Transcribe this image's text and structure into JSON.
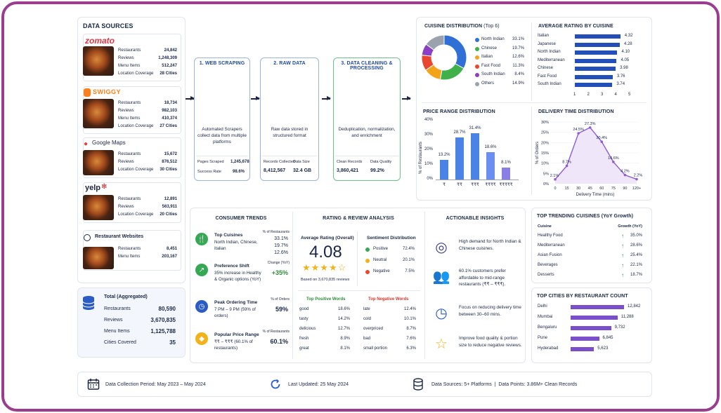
{
  "sources": {
    "title": "DATA SOURCES",
    "items": [
      {
        "logo": "zomato",
        "rows": [
          [
            "Restaurants",
            "24,842"
          ],
          [
            "Reviews",
            "1,248,309"
          ],
          [
            "Menu Items",
            "512,247"
          ],
          [
            "Location Coverage",
            "28 Cities"
          ]
        ]
      },
      {
        "logo": "SWIGGY",
        "rows": [
          [
            "Restaurants",
            "18,734"
          ],
          [
            "Reviews",
            "982,103"
          ],
          [
            "Menu Items",
            "410,374"
          ],
          [
            "Location Coverage",
            "27 Cities"
          ]
        ]
      },
      {
        "logo": "Google Maps",
        "rows": [
          [
            "Restaurants",
            "15,672"
          ],
          [
            "Reviews",
            "876,512"
          ],
          [
            "Location Coverage",
            "30 Cities"
          ]
        ]
      },
      {
        "logo": "yelp",
        "rows": [
          [
            "Restaurants",
            "12,891"
          ],
          [
            "Reviews",
            "563,911"
          ],
          [
            "Location Coverage",
            "20 Cities"
          ]
        ]
      },
      {
        "logo": "Restaurant Websites",
        "rows": [
          [
            "Restaurants",
            "8,451"
          ],
          [
            "Menu Items",
            "203,167"
          ]
        ]
      }
    ],
    "total": {
      "title": "Total (Aggregated)",
      "rows": [
        [
          "Restaurants",
          "80,590"
        ],
        [
          "Reviews",
          "3,670,835"
        ],
        [
          "Menu Items",
          "1,125,788"
        ],
        [
          "Cities Covered",
          "35"
        ]
      ]
    }
  },
  "pipeline": [
    {
      "title": "1. WEB SCRAPING",
      "desc": "Automated Scrapers collect data from multiple platforms",
      "s1l": "Pages Scraped",
      "s1v": "1,245,678",
      "s2l": "Success Rate",
      "s2v": "98.6%"
    },
    {
      "title": "2. RAW DATA",
      "desc": "Raw data stored in structured format",
      "s1l": "Records Collected",
      "s1v": "8,412,567",
      "s2l": "Data Size",
      "s2v": "32.4 GB"
    },
    {
      "title": "3. DATA CLEANING & PROCESSING",
      "desc": "Deduplication, normalization, and enrichment",
      "s1l": "Clean Records",
      "s1v": "3,860,421",
      "s2l": "Data Quality",
      "s2v": "99.2%"
    }
  ],
  "cuisine": {
    "title": "CUISINE DISTRIBUTION",
    "sub": "(Top 6)",
    "items": [
      {
        "name": "North Indian",
        "pct": "33.1%",
        "v": 33.1,
        "color": "#2f6fd6"
      },
      {
        "name": "Chinese",
        "pct": "19.7%",
        "v": 19.7,
        "color": "#3fb04a"
      },
      {
        "name": "Italian",
        "pct": "12.6%",
        "v": 12.6,
        "color": "#f2a51a"
      },
      {
        "name": "Fast Food",
        "pct": "11.3%",
        "v": 11.3,
        "color": "#e8462e"
      },
      {
        "name": "South Indian",
        "pct": "8.4%",
        "v": 8.4,
        "color": "#8b3fc2"
      },
      {
        "name": "Others",
        "pct": "14.9%",
        "v": 14.9,
        "color": "#9aa3ad"
      }
    ]
  },
  "rating_by_cuisine": {
    "title": "AVERAGE RATING BY CUISINE",
    "items": [
      [
        "Italian",
        "4.32",
        4.32
      ],
      [
        "Japanese",
        "4.28",
        4.28
      ],
      [
        "North Indian",
        "4.10",
        4.1
      ],
      [
        "Mediterranean",
        "4.05",
        4.05
      ],
      [
        "Chinese",
        "3.98",
        3.98
      ],
      [
        "Fast Food",
        "3.76",
        3.76
      ],
      [
        "South Indian",
        "3.74",
        3.74
      ]
    ],
    "ticks": [
      "1",
      "2",
      "3",
      "4",
      "5"
    ]
  },
  "price": {
    "title": "PRICE RANGE DISTRIBUTION",
    "ylabel": "% of Restaurants",
    "yticks": [
      "40%",
      "30%",
      "20%",
      "10%",
      "0%"
    ],
    "items": [
      [
        "₹",
        "13.2%",
        13.2
      ],
      [
        "₹₹",
        "28.7%",
        28.7
      ],
      [
        "₹₹₹",
        "31.4%",
        31.4
      ],
      [
        "₹₹₹₹",
        "18.6%",
        18.6
      ],
      [
        "₹₹₹₹₹",
        "8.1%",
        8.1
      ]
    ]
  },
  "delivery": {
    "title": "DELIVERY TIME DISTRIBUTION",
    "ylabel": "% of Orders",
    "xlabel": "Delivery Time (mins)",
    "yticks": [
      "30%",
      "25%",
      "20%",
      "15%",
      "10%",
      "5%",
      "0%"
    ],
    "x": [
      "0",
      "15",
      "30",
      "45",
      "60",
      "75",
      "90",
      "120+"
    ],
    "points": [
      [
        "2.1%",
        2.1
      ],
      [
        "8.7%",
        8.7
      ],
      [
        "24.5%",
        24.5
      ],
      [
        "27.3%",
        27.3
      ],
      [
        "20.4%",
        20.4
      ],
      [
        "10.6%",
        10.6
      ],
      [
        "4.2%",
        4.2
      ],
      [
        "2.2%",
        2.2
      ]
    ]
  },
  "consumer": {
    "title": "CONSUMER TRENDS",
    "top_cuisines": {
      "title": "Top Cuisines",
      "desc": "North Indian, Chinese, Italian",
      "hdr": "% of Restaurants",
      "vals": [
        "33.1%",
        "19.7%",
        "12.6%"
      ]
    },
    "pref": {
      "title": "Preference Shift",
      "desc": "35% increase in Healthy & Organic options (YoY)",
      "hdr": "Change (YoY)",
      "val": "+35%"
    },
    "peak": {
      "title": "Peak Ordering Time",
      "desc": "7 PM – 9 PM (59% of orders)",
      "hdr": "% of Orders",
      "val": "59%"
    },
    "price": {
      "title": "Popular Price Range",
      "desc": "₹₹ – ₹₹₹ (60.1% of restaurants)",
      "hdr": "% of Restaurants",
      "val": "60.1%"
    }
  },
  "review": {
    "title": "RATING & REVIEW ANALYSIS",
    "avg_label": "Average Rating (Overall)",
    "avg": "4.08",
    "based": "Based on 3,670,835 reviews",
    "sent_title": "Sentiment Distribution",
    "sent": [
      [
        "Positive",
        "72.4%",
        "#34a853"
      ],
      [
        "Neutral",
        "20.1%",
        "#f2b21a"
      ],
      [
        "Negative",
        "7.5%",
        "#e8462e"
      ]
    ],
    "pos_title": "Top Positive Words",
    "pos": [
      [
        "good",
        "18.6%"
      ],
      [
        "tasty",
        "14.2%"
      ],
      [
        "delicious",
        "12.7%"
      ],
      [
        "fresh",
        "8.9%"
      ],
      [
        "great",
        "8.1%"
      ]
    ],
    "neg_title": "Top Negative Words",
    "neg": [
      [
        "late",
        "12.4%"
      ],
      [
        "cold",
        "10.1%"
      ],
      [
        "overpriced",
        "8.7%"
      ],
      [
        "bad",
        "7.6%"
      ],
      [
        "small portion",
        "6.3%"
      ]
    ]
  },
  "insights": {
    "title": "ACTIONABLE INSIGHTS",
    "items": [
      "High demand for North Indian & Chinese cuisines.",
      "60.1% customers prefer affordable to mid-range restaurants (₹₹ – ₹₹₹).",
      "Focus on reducing delivery time between 30–60 mins.",
      "Improve food quality & portion size to reduce negative reviews."
    ]
  },
  "trending": {
    "title": "TOP TRENDING CUISINES (YoY Growth)",
    "h1": "Cuisine",
    "h2": "Growth (YoY)",
    "items": [
      [
        "Healthy Food",
        "35.0%"
      ],
      [
        "Mediterranean",
        "28.6%"
      ],
      [
        "Asian Fusion",
        "25.4%"
      ],
      [
        "Beverages",
        "22.1%"
      ],
      [
        "Desserts",
        "18.7%"
      ]
    ]
  },
  "cities": {
    "title": "TOP CITIES BY RESTAURANT COUNT",
    "items": [
      [
        "Delhi",
        "12,842",
        12842
      ],
      [
        "Mumbai",
        "11,288",
        11288
      ],
      [
        "Bengaluru",
        "9,732",
        9732
      ],
      [
        "Pune",
        "6,845",
        6845
      ],
      [
        "Hyderabad",
        "5,623",
        5623
      ]
    ]
  },
  "footer": {
    "period": "Data Collection Period: May 2023 – May 2024",
    "updated": "Last Updated: 25 May 2024",
    "sources": "Data Sources: 5+ Platforms  |  Data Points: 3.86M+ Clean Records"
  }
}
